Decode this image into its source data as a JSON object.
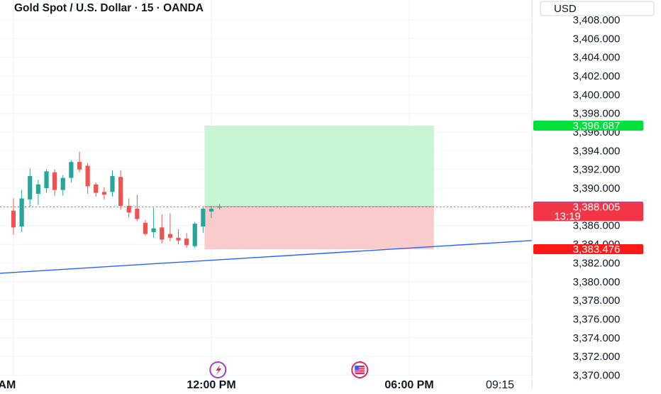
{
  "header": {
    "symbol_title": "Gold Spot / U.S. Dollar · 15 · OANDA"
  },
  "currency_button": {
    "label": "USD"
  },
  "colors": {
    "up": "#26a69a",
    "down": "#ef5350",
    "trendline": "#2962ff",
    "target_zone": "#c8f5d2",
    "stop_zone": "#f9cbcd",
    "badge_target": "#00e03a",
    "badge_entry": "#2962ff",
    "badge_current": "#f23645",
    "badge_stop": "#ff1a1a"
  },
  "events": [
    {
      "name": "lightning-event-icon",
      "time": "12:12"
    },
    {
      "name": "us-flag-event-icon",
      "time": "16:30"
    }
  ],
  "chart_data": {
    "type": "candlestick",
    "title": "Gold Spot / U.S. Dollar · 15 · OANDA",
    "currency": "USD",
    "ylim": [
      3370,
      3409
    ],
    "y_ticks": [
      "3,370.000",
      "3,372.000",
      "3,374.000",
      "3,376.000",
      "3,378.000",
      "3,380.000",
      "3,382.000",
      "3,384.000",
      "3,386.000",
      "3,388.000",
      "3,390.000",
      "3,392.000",
      "3,394.000",
      "3,396.000",
      "3,398.000",
      "3,400.000",
      "3,402.000",
      "3,404.000",
      "3,406.000",
      "3,408.000"
    ],
    "x_ticks": [
      {
        "label": "00 AM",
        "time": "06:00"
      },
      {
        "label": "12:00 PM",
        "time": "12:00"
      },
      {
        "label": "06:00 PM",
        "time": "18:00"
      },
      {
        "label": "09:15",
        "time": "21:15"
      }
    ],
    "candles": [
      {
        "time": "06:00",
        "o": 3387.6,
        "h": 3388.9,
        "l": 3385.0,
        "c": 3385.8
      },
      {
        "time": "06:15",
        "o": 3385.9,
        "h": 3389.8,
        "l": 3385.3,
        "c": 3388.9
      },
      {
        "time": "06:30",
        "o": 3388.8,
        "h": 3392.1,
        "l": 3388.0,
        "c": 3391.3
      },
      {
        "time": "06:45",
        "o": 3389.4,
        "h": 3390.9,
        "l": 3388.2,
        "c": 3390.4
      },
      {
        "time": "07:00",
        "o": 3390.0,
        "h": 3392.0,
        "l": 3389.5,
        "c": 3391.8
      },
      {
        "time": "07:15",
        "o": 3391.7,
        "h": 3392.0,
        "l": 3389.2,
        "c": 3389.8
      },
      {
        "time": "07:30",
        "o": 3389.8,
        "h": 3391.4,
        "l": 3389.2,
        "c": 3391.1
      },
      {
        "time": "07:45",
        "o": 3391.1,
        "h": 3393.0,
        "l": 3390.6,
        "c": 3392.8
      },
      {
        "time": "08:00",
        "o": 3392.8,
        "h": 3393.9,
        "l": 3391.7,
        "c": 3392.0
      },
      {
        "time": "08:15",
        "o": 3392.4,
        "h": 3392.7,
        "l": 3389.4,
        "c": 3390.2
      },
      {
        "time": "08:30",
        "o": 3390.4,
        "h": 3390.6,
        "l": 3389.1,
        "c": 3389.5
      },
      {
        "time": "08:45",
        "o": 3389.6,
        "h": 3390.1,
        "l": 3388.8,
        "c": 3389.3
      },
      {
        "time": "09:00",
        "o": 3389.6,
        "h": 3391.9,
        "l": 3389.1,
        "c": 3391.3
      },
      {
        "time": "09:15",
        "o": 3391.2,
        "h": 3391.9,
        "l": 3387.7,
        "c": 3388.1
      },
      {
        "time": "09:30",
        "o": 3388.1,
        "h": 3388.9,
        "l": 3386.9,
        "c": 3387.4
      },
      {
        "time": "09:45",
        "o": 3387.8,
        "h": 3389.3,
        "l": 3386.5,
        "c": 3386.7
      },
      {
        "time": "10:00",
        "o": 3386.3,
        "h": 3386.6,
        "l": 3384.9,
        "c": 3385.1
      },
      {
        "time": "10:15",
        "o": 3385.3,
        "h": 3387.9,
        "l": 3384.7,
        "c": 3385.7
      },
      {
        "time": "10:30",
        "o": 3385.8,
        "h": 3387.2,
        "l": 3384.1,
        "c": 3384.5
      },
      {
        "time": "10:45",
        "o": 3385.1,
        "h": 3387.3,
        "l": 3384.3,
        "c": 3384.7
      },
      {
        "time": "11:00",
        "o": 3384.7,
        "h": 3385.6,
        "l": 3384.0,
        "c": 3384.4
      },
      {
        "time": "11:15",
        "o": 3384.6,
        "h": 3385.2,
        "l": 3383.6,
        "c": 3383.9
      },
      {
        "time": "11:30",
        "o": 3383.8,
        "h": 3386.4,
        "l": 3383.6,
        "c": 3386.2
      },
      {
        "time": "11:45",
        "o": 3385.9,
        "h": 3387.9,
        "l": 3385.2,
        "c": 3387.8
      },
      {
        "time": "12:00",
        "o": 3387.5,
        "h": 3388.1,
        "l": 3386.8,
        "c": 3387.8
      },
      {
        "time": "12:15",
        "o": 3388.0,
        "h": 3388.3,
        "l": 3387.7,
        "c": 3388.0
      }
    ],
    "trendline": {
      "start": {
        "time": "06:00",
        "price": 3380.9
      },
      "end": {
        "time": "21:15",
        "price": 3384.4
      }
    },
    "long_position": {
      "start_time": "11:45",
      "end_time": "18:45",
      "entry": 3388.026,
      "target": 3396.687,
      "stop": 3383.476
    },
    "price_labels": {
      "target": "3,396.687",
      "entry": "3,388.026",
      "current": "3,388.005",
      "countdown": "13:19",
      "stop": "3,383.476"
    },
    "current_price": 3388.005,
    "grid": true,
    "legend": "none"
  }
}
